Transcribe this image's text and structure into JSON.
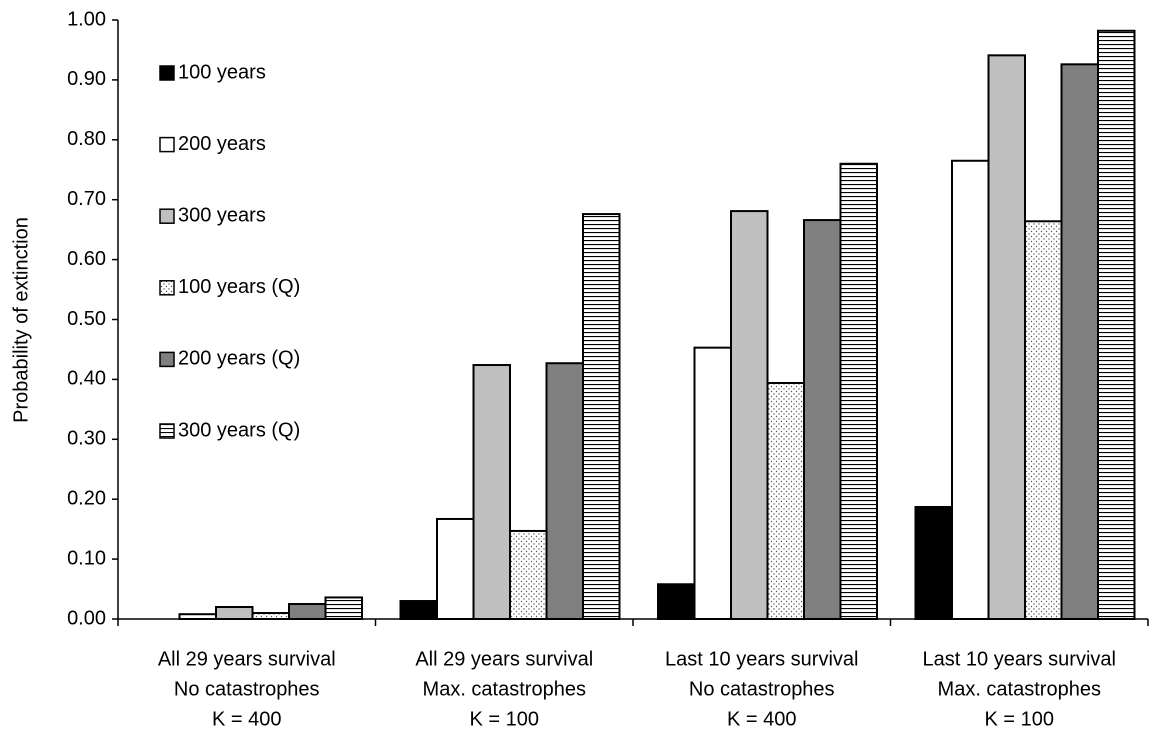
{
  "chart_data": {
    "type": "bar",
    "y_label": "Probability of extinction",
    "categories": [
      [
        "All 29 years survival",
        "No catastrophes",
        "K = 400"
      ],
      [
        "All 29 years survival",
        "Max. catastrophes",
        "K = 100"
      ],
      [
        "Last 10 years survival",
        "No catastrophes",
        "K = 400"
      ],
      [
        "Last 10 years survival",
        "Max. catastrophes",
        "K = 100"
      ]
    ],
    "series": [
      {
        "name": "100 years",
        "color": "#000000",
        "values": [
          0,
          0.03,
          0.058,
          0.187
        ]
      },
      {
        "name": "200 years",
        "color": "#ffffff",
        "values": [
          0.008,
          0.167,
          0.453,
          0.765
        ]
      },
      {
        "name": "300 years",
        "color": "#c0c0c0",
        "values": [
          0.02,
          0.424,
          0.681,
          0.941
        ]
      },
      {
        "name": "100 years (Q)",
        "color": "#ffffff",
        "pattern": "dots",
        "values": [
          0.01,
          0.147,
          0.394,
          0.664
        ]
      },
      {
        "name": "200 years (Q)",
        "color": "#808080",
        "values": [
          0.025,
          0.427,
          0.666,
          0.926
        ]
      },
      {
        "name": "300 years (Q)",
        "color": "#ffffff",
        "pattern": "hlines",
        "values": [
          0.036,
          0.676,
          0.76,
          0.982
        ]
      }
    ],
    "ylim": [
      0,
      1
    ],
    "yticks": [
      {
        "value": 0,
        "label": "0.00"
      },
      {
        "value": 0.1,
        "label": "0.10"
      },
      {
        "value": 0.2,
        "label": "0.20"
      },
      {
        "value": 0.3,
        "label": "0.30"
      },
      {
        "value": 0.4,
        "label": "0.40"
      },
      {
        "value": 0.5,
        "label": "0.50"
      },
      {
        "value": 0.6,
        "label": "0.60"
      },
      {
        "value": 0.7,
        "label": "0.70"
      },
      {
        "value": 0.8,
        "label": "0.80"
      },
      {
        "value": 0.9,
        "label": "0.90"
      },
      {
        "value": 1,
        "label": "1.00"
      }
    ],
    "grid": false,
    "legend": "upper left"
  }
}
